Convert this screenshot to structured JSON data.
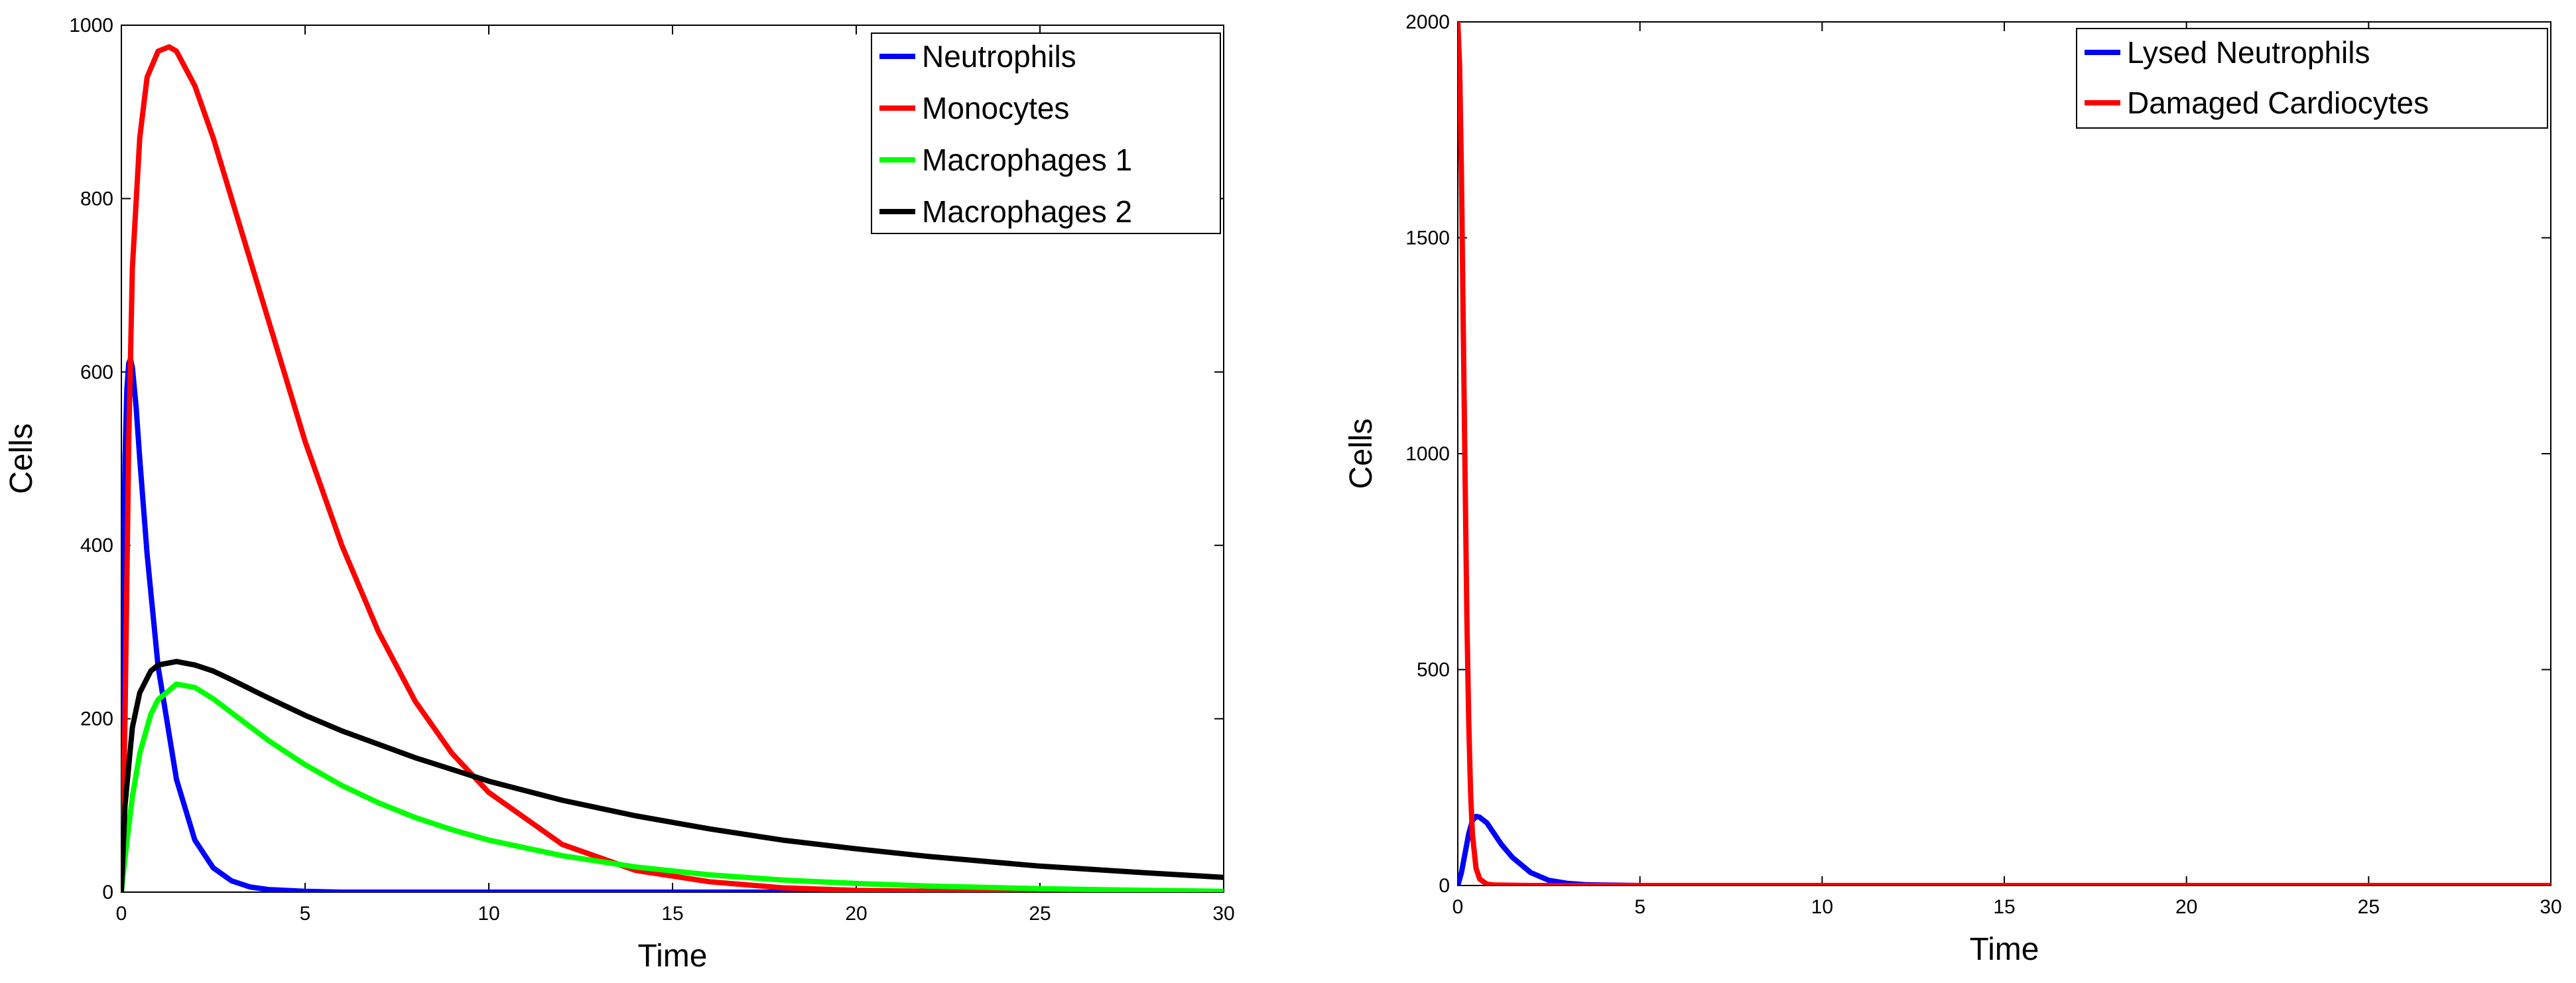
{
  "chart_data": [
    {
      "type": "line",
      "title": "",
      "xlabel": "Time",
      "ylabel": "Cells",
      "xlim": [
        0,
        30
      ],
      "ylim": [
        0,
        1000
      ],
      "xticks": [
        "0",
        "5",
        "10",
        "15",
        "20",
        "25",
        "30"
      ],
      "yticks": [
        "0",
        "200",
        "400",
        "600",
        "800",
        "1000"
      ],
      "grid": false,
      "legend_position": "top-right",
      "series": [
        {
          "name": "Neutrophils",
          "color": "#0000ff",
          "x": [
            0,
            0.05,
            0.1,
            0.15,
            0.2,
            0.25,
            0.3,
            0.4,
            0.5,
            0.7,
            1.0,
            1.5,
            2.0,
            2.5,
            3.0,
            3.5,
            4.0,
            5.0,
            6.0,
            8.0,
            10,
            15,
            20,
            25,
            30
          ],
          "y": [
            0,
            330,
            500,
            580,
            610,
            615,
            605,
            560,
            500,
            390,
            260,
            130,
            60,
            28,
            13,
            6,
            3,
            1,
            0,
            0,
            0,
            0,
            0,
            0,
            0
          ]
        },
        {
          "name": "Monocytes",
          "color": "#ff0000",
          "x": [
            0,
            0.1,
            0.2,
            0.3,
            0.5,
            0.7,
            1.0,
            1.3,
            1.5,
            2.0,
            2.5,
            3.0,
            4.0,
            5.0,
            6.0,
            7.0,
            8.0,
            9.0,
            10,
            12,
            14,
            16,
            18,
            20,
            22,
            25,
            30
          ],
          "y": [
            0,
            200,
            520,
            720,
            870,
            940,
            970,
            975,
            970,
            930,
            870,
            800,
            660,
            520,
            400,
            300,
            220,
            160,
            115,
            55,
            25,
            12,
            5,
            2,
            1,
            0,
            0
          ]
        },
        {
          "name": "Macrophages 1",
          "color": "#00ff00",
          "x": [
            0,
            0.1,
            0.3,
            0.5,
            0.8,
            1.0,
            1.5,
            2.0,
            2.5,
            3.0,
            4.0,
            5.0,
            6.0,
            7.0,
            8.0,
            9.0,
            10,
            12,
            14,
            16,
            18,
            20,
            22,
            25,
            28,
            30
          ],
          "y": [
            0,
            40,
            110,
            160,
            205,
            222,
            240,
            236,
            223,
            207,
            175,
            147,
            123,
            103,
            86,
            72,
            60,
            42,
            29,
            20,
            14,
            10,
            7,
            4,
            2,
            1
          ]
        },
        {
          "name": "Macrophages 2",
          "color": "#000000",
          "x": [
            0,
            0.1,
            0.3,
            0.5,
            0.8,
            1.0,
            1.5,
            2.0,
            2.5,
            3.0,
            4.0,
            5.0,
            6.0,
            8.0,
            10,
            12,
            14,
            16,
            18,
            20,
            22,
            25,
            28,
            30
          ],
          "y": [
            0,
            100,
            190,
            230,
            255,
            262,
            266,
            262,
            255,
            245,
            224,
            204,
            186,
            155,
            128,
            106,
            88,
            73,
            60,
            50,
            41,
            30,
            22,
            17
          ]
        }
      ]
    },
    {
      "type": "line",
      "title": "",
      "xlabel": "Time",
      "ylabel": "Cells",
      "xlim": [
        0,
        30
      ],
      "ylim": [
        0,
        2000
      ],
      "xticks": [
        "0",
        "5",
        "10",
        "15",
        "20",
        "25",
        "30"
      ],
      "yticks": [
        "0",
        "500",
        "1000",
        "1500",
        "2000"
      ],
      "grid": false,
      "legend_position": "top-right",
      "series": [
        {
          "name": "Lysed Neutrophils",
          "color": "#0000ff",
          "x": [
            0,
            0.1,
            0.2,
            0.3,
            0.4,
            0.5,
            0.6,
            0.8,
            1.0,
            1.2,
            1.5,
            2.0,
            2.5,
            3.0,
            3.5,
            4.0,
            5.0,
            10,
            20,
            30
          ],
          "y": [
            0,
            30,
            75,
            120,
            150,
            160,
            158,
            145,
            120,
            95,
            65,
            30,
            12,
            5,
            2,
            1,
            0,
            0,
            0,
            0
          ]
        },
        {
          "name": "Damaged Cardiocytes",
          "color": "#ff0000",
          "x": [
            0,
            0.05,
            0.1,
            0.15,
            0.2,
            0.25,
            0.3,
            0.35,
            0.4,
            0.5,
            0.6,
            0.8,
            1.0,
            2.0,
            5.0,
            10,
            20,
            30
          ],
          "y": [
            2000,
            1900,
            1650,
            1300,
            950,
            620,
            380,
            220,
            120,
            40,
            15,
            3,
            1,
            0,
            0,
            0,
            0,
            0
          ]
        }
      ]
    }
  ]
}
